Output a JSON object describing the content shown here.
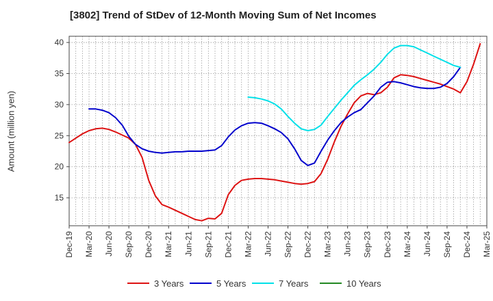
{
  "chart_data": {
    "type": "line",
    "title": "[3802]  Trend of StDev of 12-Month Moving Sum of Net Incomes",
    "xlabel": "",
    "ylabel": "Amount (million yen)",
    "ylim": [
      10.5,
      41
    ],
    "yticks": [
      15,
      20,
      25,
      30,
      35,
      40
    ],
    "grid": true,
    "legend_position": "bottom",
    "xticks": [
      "Dec-19",
      "Mar-20",
      "Jun-20",
      "Sep-20",
      "Dec-20",
      "Mar-21",
      "Jun-21",
      "Sep-21",
      "Dec-21",
      "Mar-22",
      "Jun-22",
      "Sep-22",
      "Dec-22",
      "Mar-23",
      "Jun-23",
      "Sep-23",
      "Dec-23",
      "Mar-24",
      "Jun-24",
      "Sep-24",
      "Dec-24",
      "Mar-25"
    ],
    "series": [
      {
        "name": "3 Years",
        "color": "#dd1111",
        "start_index": 0,
        "values": [
          23.9,
          24.6,
          25.3,
          25.8,
          26.1,
          26.2,
          26.0,
          25.6,
          25.1,
          24.6,
          23.6,
          21.5,
          17.8,
          15.3,
          13.9,
          13.5,
          13.0,
          12.5,
          12.0,
          11.5,
          11.3,
          11.7,
          11.6,
          12.5,
          15.5,
          17.0,
          17.8,
          18.0,
          18.1,
          18.1,
          18.0,
          17.9,
          17.7,
          17.5,
          17.3,
          17.2,
          17.3,
          17.6,
          18.9,
          21.2,
          24.0,
          26.5,
          28.5,
          30.3,
          31.4,
          31.8,
          31.6,
          31.9,
          32.8,
          34.3,
          34.8,
          34.7,
          34.5,
          34.2,
          33.9,
          33.6,
          33.3,
          32.9,
          32.5,
          31.9,
          33.7,
          36.5,
          39.8
        ]
      },
      {
        "name": "5 Years",
        "color": "#0000cc",
        "start_index": 3,
        "values": [
          29.3,
          29.3,
          29.1,
          28.7,
          27.9,
          26.7,
          24.9,
          23.6,
          22.9,
          22.5,
          22.3,
          22.2,
          22.3,
          22.4,
          22.4,
          22.5,
          22.5,
          22.5,
          22.6,
          22.7,
          23.4,
          24.8,
          25.9,
          26.6,
          27.0,
          27.1,
          27.0,
          26.6,
          26.1,
          25.5,
          24.5,
          22.9,
          21.0,
          20.2,
          20.6,
          22.5,
          24.3,
          25.8,
          27.1,
          28.0,
          28.7,
          29.2,
          30.3,
          31.4,
          32.8,
          33.6,
          33.7,
          33.5,
          33.2,
          32.9,
          32.7,
          32.6,
          32.6,
          32.8,
          33.4,
          34.5,
          36.0
        ]
      },
      {
        "name": "7 Years",
        "color": "#00e0e8",
        "start_index": 27,
        "values": [
          31.2,
          31.1,
          30.9,
          30.6,
          30.1,
          29.3,
          28.1,
          27.0,
          26.1,
          25.8,
          26.0,
          26.7,
          28.1,
          29.4,
          30.7,
          31.9,
          33.1,
          34.0,
          34.8,
          35.7,
          36.8,
          38.1,
          39.1,
          39.5,
          39.5,
          39.3,
          38.8,
          38.3,
          37.8,
          37.3,
          36.8,
          36.3,
          36.0
        ]
      },
      {
        "name": "10 Years",
        "color": "#228822",
        "start_index": 0,
        "values": []
      }
    ]
  }
}
